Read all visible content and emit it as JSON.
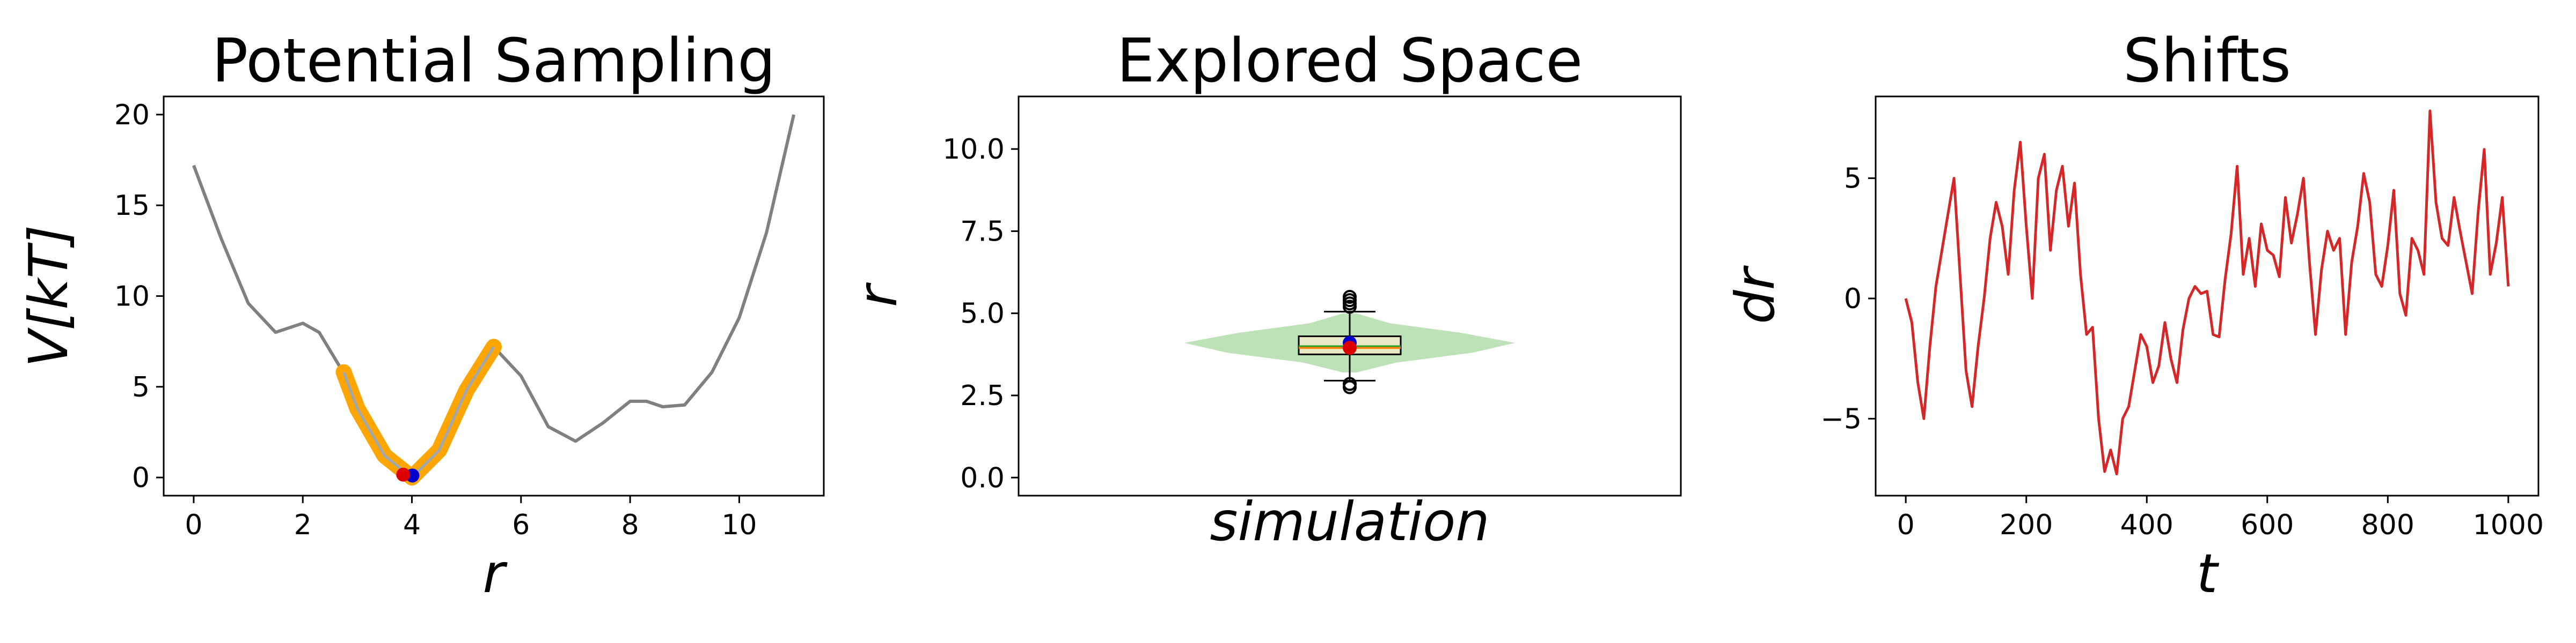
{
  "chart_data": [
    {
      "type": "line",
      "title": "Potential Sampling",
      "xlabel": "r",
      "ylabel": "V[kT]",
      "xlim": [
        -0.55,
        11.55
      ],
      "ylim": [
        -1,
        21
      ],
      "xticks": [
        0,
        2,
        4,
        6,
        8,
        10
      ],
      "yticks": [
        0,
        5,
        10,
        15,
        20
      ],
      "series": [
        {
          "role": "potential",
          "color": "#808080",
          "x": [
            0,
            0.5,
            1.0,
            1.5,
            2.0,
            2.3,
            2.7,
            3.0,
            3.5,
            4.0,
            4.5,
            5.0,
            5.5,
            6.0,
            6.5,
            7.0,
            7.5,
            8.0,
            8.3,
            8.6,
            9.0,
            9.5,
            10.0,
            10.5,
            11.0
          ],
          "y": [
            17.2,
            13.2,
            9.6,
            8.0,
            8.5,
            8.0,
            6.0,
            3.8,
            1.2,
            0.0,
            1.5,
            4.8,
            7.2,
            5.6,
            2.8,
            2.0,
            3.0,
            4.2,
            4.2,
            3.9,
            4.0,
            5.8,
            8.8,
            13.5,
            20.0
          ]
        },
        {
          "role": "sampled-region",
          "color": "#FFA500",
          "x": [
            2.75,
            3.0,
            3.5,
            4.0,
            4.5,
            5.0,
            5.5
          ],
          "y": [
            5.8,
            3.8,
            1.2,
            0.0,
            1.5,
            4.8,
            7.2
          ]
        }
      ],
      "markers": [
        {
          "x": 3.95,
          "y": 0.05,
          "color": "#0000CC"
        },
        {
          "x": 3.9,
          "y": 0.1,
          "color": "#DD0000"
        }
      ]
    },
    {
      "type": "violin",
      "title": "Explored Space",
      "xlabel": "simulation",
      "ylabel": "r",
      "ylim": [
        -0.55,
        11.6
      ],
      "yticks": [
        0.0,
        2.5,
        5.0,
        7.5,
        10.0
      ],
      "violin": {
        "color": "#A8D8A0",
        "y": [
          3.2,
          3.5,
          3.8,
          4.1,
          4.4,
          4.7,
          5.0
        ],
        "half_width": [
          0.02,
          0.14,
          0.37,
          0.5,
          0.34,
          0.12,
          0.02
        ]
      },
      "box": {
        "whisker_low": 2.95,
        "q1": 3.75,
        "median": 3.95,
        "q3": 4.3,
        "whisker_high": 5.05,
        "fliers": [
          2.75,
          2.85,
          5.2,
          5.3,
          5.4,
          5.5
        ],
        "mean": 4.0,
        "markers": [
          {
            "y": 4.1,
            "color": "#0000CC"
          },
          {
            "y": 3.95,
            "color": "#DD0000"
          }
        ]
      }
    },
    {
      "type": "line",
      "title": "Shifts",
      "xlabel": "t",
      "ylabel": "dr",
      "xlim": [
        -50,
        1050
      ],
      "ylim": [
        -8.2,
        8.4
      ],
      "xticks": [
        0,
        200,
        400,
        600,
        800,
        1000
      ],
      "yticks": [
        -5,
        0,
        5
      ],
      "series": [
        {
          "color": "#D62728",
          "x": [
            0,
            10,
            20,
            30,
            40,
            50,
            60,
            70,
            80,
            90,
            100,
            110,
            120,
            130,
            140,
            150,
            160,
            170,
            180,
            190,
            200,
            210,
            220,
            230,
            240,
            250,
            260,
            270,
            280,
            290,
            300,
            310,
            320,
            330,
            340,
            350,
            360,
            370,
            380,
            390,
            400,
            410,
            420,
            430,
            440,
            450,
            460,
            470,
            480,
            490,
            500,
            510,
            520,
            530,
            540,
            550,
            560,
            570,
            580,
            590,
            600,
            610,
            620,
            630,
            640,
            650,
            660,
            670,
            680,
            690,
            700,
            710,
            720,
            730,
            740,
            750,
            760,
            770,
            780,
            790,
            800,
            810,
            820,
            830,
            840,
            850,
            860,
            870,
            880,
            890,
            900,
            910,
            920,
            930,
            940,
            950,
            960,
            970,
            980,
            990,
            1000
          ],
          "y": [
            0,
            -1,
            -3.5,
            -5,
            -2,
            0.5,
            2,
            3.5,
            5,
            1,
            -3,
            -4.5,
            -2,
            0,
            2.5,
            4,
            3,
            1,
            4.5,
            6.5,
            3,
            0,
            5,
            6,
            2,
            4.5,
            5.5,
            3,
            4.8,
            1,
            -1.5,
            -1.2,
            -5,
            -7.2,
            -6.3,
            -7.3,
            -5,
            -4.5,
            -3,
            -1.5,
            -2,
            -3.5,
            -2.8,
            -1,
            -2.5,
            -3.5,
            -1.3,
            0,
            0.5,
            0.2,
            0.3,
            -1.5,
            -1.6,
            0.8,
            2.7,
            5.5,
            1,
            2.5,
            0.5,
            3.1,
            2,
            1.8,
            0.9,
            4.2,
            2.3,
            3.5,
            5,
            1.5,
            -1.5,
            1.2,
            2.8,
            2,
            2.5,
            -1.5,
            1.5,
            3,
            5.2,
            4,
            1,
            0.5,
            2.2,
            4.5,
            0.2,
            -0.7,
            2.5,
            2,
            1,
            7.8,
            4,
            2.5,
            2.2,
            4.2,
            2.8,
            1.5,
            0.2,
            3.6,
            6.2,
            1,
            2.3,
            4.2,
            0.5
          ]
        }
      ]
    }
  ]
}
